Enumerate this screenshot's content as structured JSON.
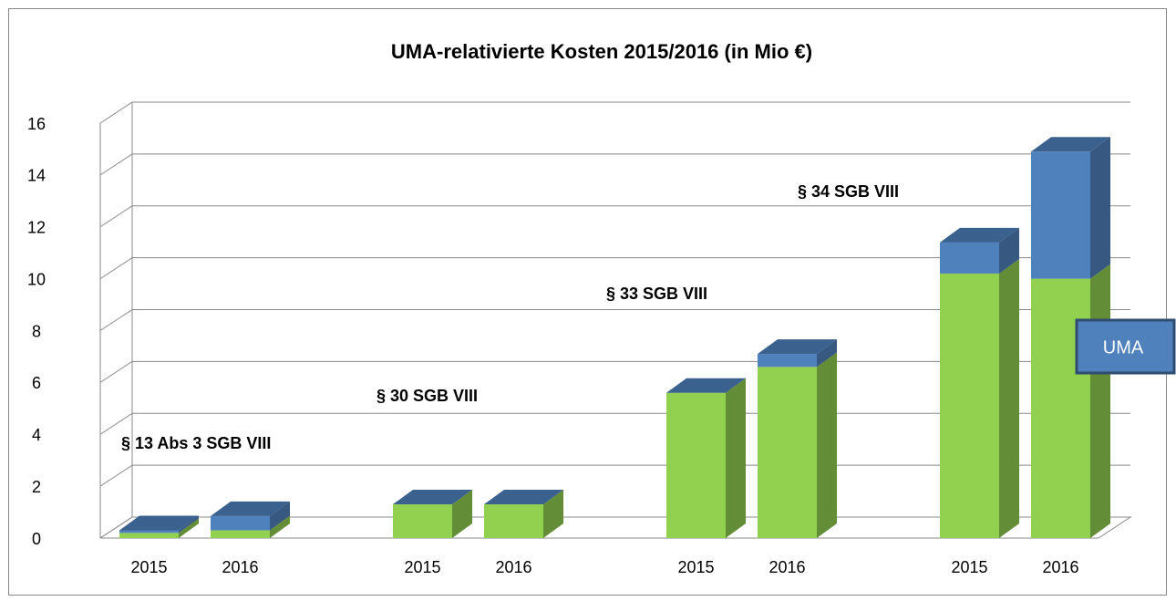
{
  "chart_data": {
    "type": "bar3d-stacked",
    "title": "UMA-relativierte Kosten 2015/2016 (in Mio €)",
    "groups": [
      "§ 13 Abs 3 SGB VIII",
      "§ 30 SGB VIII",
      "§ 33 SGB VIII",
      "§ 34 SGB VIII"
    ],
    "categories": [
      "2015",
      "2016",
      "2015",
      "2016",
      "2015",
      "2016",
      "2015",
      "2016"
    ],
    "series": [
      {
        "color": "#92d050",
        "values": [
          0.2,
          0.3,
          1.3,
          1.3,
          5.6,
          6.6,
          10.2,
          10.0
        ]
      },
      {
        "name": "UMA",
        "color": "#4f81bd",
        "values": [
          0.1,
          0.55,
          0,
          0,
          0,
          0.5,
          1.2,
          4.9
        ]
      }
    ],
    "ylim": [
      0,
      16
    ],
    "yticks": [
      0,
      2,
      4,
      6,
      8,
      10,
      12,
      14,
      16
    ],
    "grid": true
  }
}
